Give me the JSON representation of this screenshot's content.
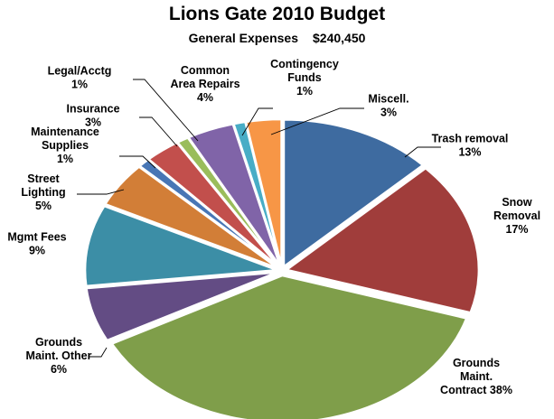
{
  "chart_data": {
    "type": "pie",
    "title": "Lions Gate 2010 Budget",
    "subtitle_label": "General Expenses",
    "subtitle_total": "$240,450",
    "start_angle_deg": 0,
    "direction": "clockwise",
    "slices": [
      {
        "id": "trash-removal",
        "label": [
          "Trash removal"
        ],
        "pct_text": "13%",
        "value": 13,
        "color": "#3E6BA0",
        "explode": 0
      },
      {
        "id": "snow-removal",
        "label": [
          "Snow",
          "Removal"
        ],
        "pct_text": "17%",
        "value": 17,
        "color": "#A03D3B",
        "explode": 0
      },
      {
        "id": "grounds-maint-contract",
        "label": [
          "Grounds",
          "Maint.",
          "Contract"
        ],
        "pct_text": "38%",
        "value": 38,
        "color": "#7F9E4A",
        "explode": 0
      },
      {
        "id": "grounds-maint-other",
        "label": [
          "Grounds",
          "Maint. Other"
        ],
        "pct_text": "6%",
        "value": 6,
        "color": "#634C84",
        "explode": 0
      },
      {
        "id": "mgmt-fees",
        "label": [
          "Mgmt Fees"
        ],
        "pct_text": "9%",
        "value": 9,
        "color": "#3C8EA6",
        "explode": 0
      },
      {
        "id": "street-lighting",
        "label": [
          "Street",
          "Lighting"
        ],
        "pct_text": "5%",
        "value": 5,
        "color": "#D27E37",
        "explode": 0
      },
      {
        "id": "maintenance-supplies",
        "label": [
          "Maintenance",
          "Supplies"
        ],
        "pct_text": "1%",
        "value": 1,
        "color": "#4876B5",
        "explode": 0
      },
      {
        "id": "insurance",
        "label": [
          "Insurance"
        ],
        "pct_text": "3%",
        "value": 3,
        "color": "#C24F4C",
        "explode": 0
      },
      {
        "id": "legal-acctg",
        "label": [
          "Legal/Acctg"
        ],
        "pct_text": "1%",
        "value": 1,
        "color": "#9ABD5B",
        "explode": 0
      },
      {
        "id": "common-area-repairs",
        "label": [
          "Common",
          "Area Repairs"
        ],
        "pct_text": "4%",
        "value": 4,
        "color": "#8064A8",
        "explode": 0
      },
      {
        "id": "contingency-funds",
        "label": [
          "Contingency",
          "Funds"
        ],
        "pct_text": "1%",
        "value": 1,
        "color": "#48ADC6",
        "explode": 0
      },
      {
        "id": "miscell",
        "label": [
          "Miscell."
        ],
        "pct_text": "3%",
        "value": 3,
        "color": "#F79646",
        "explode": 0
      }
    ],
    "legend": "none"
  }
}
